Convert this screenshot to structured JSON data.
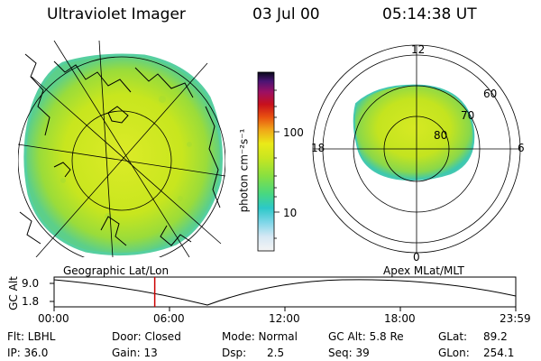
{
  "header": {
    "title": "Ultraviolet Imager",
    "date": "03 Jul 00",
    "time": "05:14:38 UT"
  },
  "colorbar": {
    "unit_label": "photon cm⁻²s⁻¹",
    "ticks": [
      "100",
      "10"
    ]
  },
  "polar_plot": {
    "mlt_labels": {
      "top": "12",
      "left": "18",
      "right": "6",
      "bottom": "0"
    },
    "lat_labels": [
      "60",
      "70",
      "80"
    ]
  },
  "strip": {
    "left_label": "Geographic Lat/Lon",
    "right_label": "Apex MLat/MLT",
    "axis_label": "GC Alt",
    "y_ticks": [
      "9.0",
      "1.8"
    ],
    "x_ticks": [
      "00:00",
      "06:00",
      "12:00",
      "18:00",
      "23:59"
    ],
    "marker_time_fraction": 0.218
  },
  "info": {
    "flt": "Flt: LBHL",
    "ip": "IP: 36.0",
    "door": "Door: Closed",
    "gain": "Gain: 13",
    "mode": "Mode: Normal",
    "dsp_label": "Dsp:",
    "dsp_value": "2.5",
    "gcalt": "GC Alt: 5.8 Re",
    "seq": "Seq: 39",
    "glat": "GLat:",
    "glat_value": "89.2",
    "glon": "GLon:",
    "glon_value": "254.1"
  },
  "colors": {
    "image_main": "#c8e61e",
    "image_edge": "#32c8b4",
    "marker": "#cc0000"
  }
}
